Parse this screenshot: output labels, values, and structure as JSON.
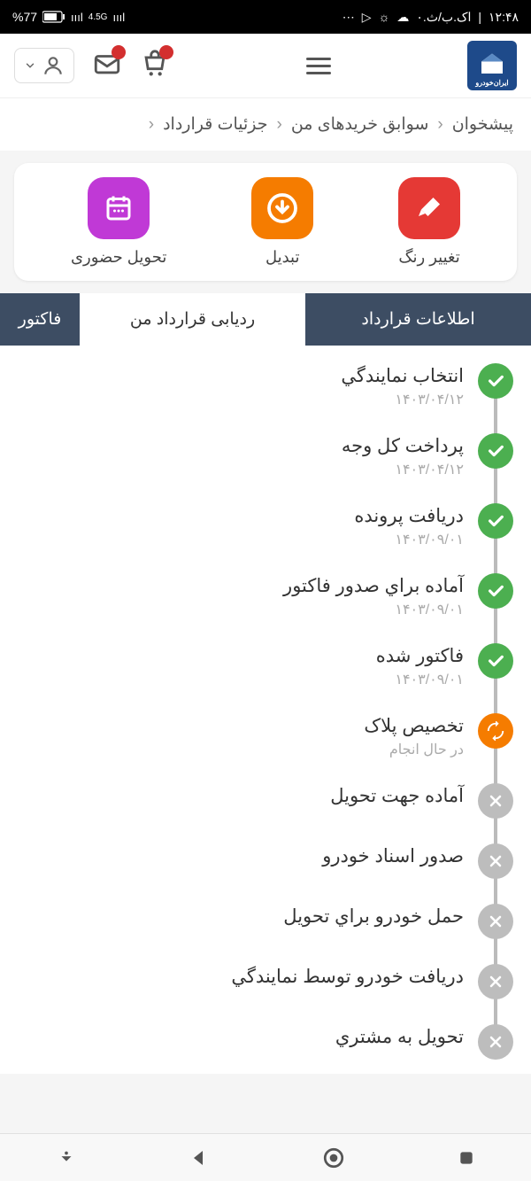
{
  "status": {
    "time": "۱۲:۴۸",
    "date": "۰.اک.ب/ث",
    "battery": "%77",
    "network": "4.5G"
  },
  "logo_text": "ایران‌خودرو",
  "breadcrumbs": {
    "items": [
      {
        "label": "پیشخوان"
      },
      {
        "label": "سوابق خریدهای من"
      },
      {
        "label": "جزئیات قرارداد"
      }
    ]
  },
  "actions": {
    "items": [
      {
        "label": "تغییر رنگ",
        "bg": "#e53935",
        "icon": "brush"
      },
      {
        "label": "تبدیل",
        "bg": "#f57c00",
        "icon": "download"
      },
      {
        "label": "تحویل حضوری",
        "bg": "#c039d6",
        "icon": "calendar"
      }
    ]
  },
  "tabs": {
    "items": [
      {
        "label": "اطلاعات قرارداد",
        "active": false
      },
      {
        "label": "ردیابی قرارداد من",
        "active": true
      },
      {
        "label": "فاکتور",
        "active": false
      }
    ]
  },
  "tracking": {
    "colors": {
      "done": "#4caf50",
      "progress": "#f57c00",
      "pending": "#bdbdbd"
    },
    "steps": [
      {
        "title": "انتخاب نمایندگي",
        "date": "۱۴۰۳/۰۴/۱۲",
        "status": "done"
      },
      {
        "title": "پرداخت کل وجه",
        "date": "۱۴۰۳/۰۴/۱۲",
        "status": "done"
      },
      {
        "title": "دریافت پرونده",
        "date": "۱۴۰۳/۰۹/۰۱",
        "status": "done"
      },
      {
        "title": "آماده براي صدور فاکتور",
        "date": "۱۴۰۳/۰۹/۰۱",
        "status": "done"
      },
      {
        "title": "فاکتور شده",
        "date": "۱۴۰۳/۰۹/۰۱",
        "status": "done"
      },
      {
        "title": "تخصیص پلاک",
        "date": "در حال انجام",
        "status": "progress"
      },
      {
        "title": "آماده جهت تحویل",
        "date": "",
        "status": "pending"
      },
      {
        "title": "صدور اسناد خودرو",
        "date": "",
        "status": "pending"
      },
      {
        "title": "حمل خودرو براي تحویل",
        "date": "",
        "status": "pending"
      },
      {
        "title": "دریافت خودرو توسط نمایندگي",
        "date": "",
        "status": "pending"
      },
      {
        "title": "تحویل به مشتري",
        "date": "",
        "status": "pending"
      }
    ]
  }
}
